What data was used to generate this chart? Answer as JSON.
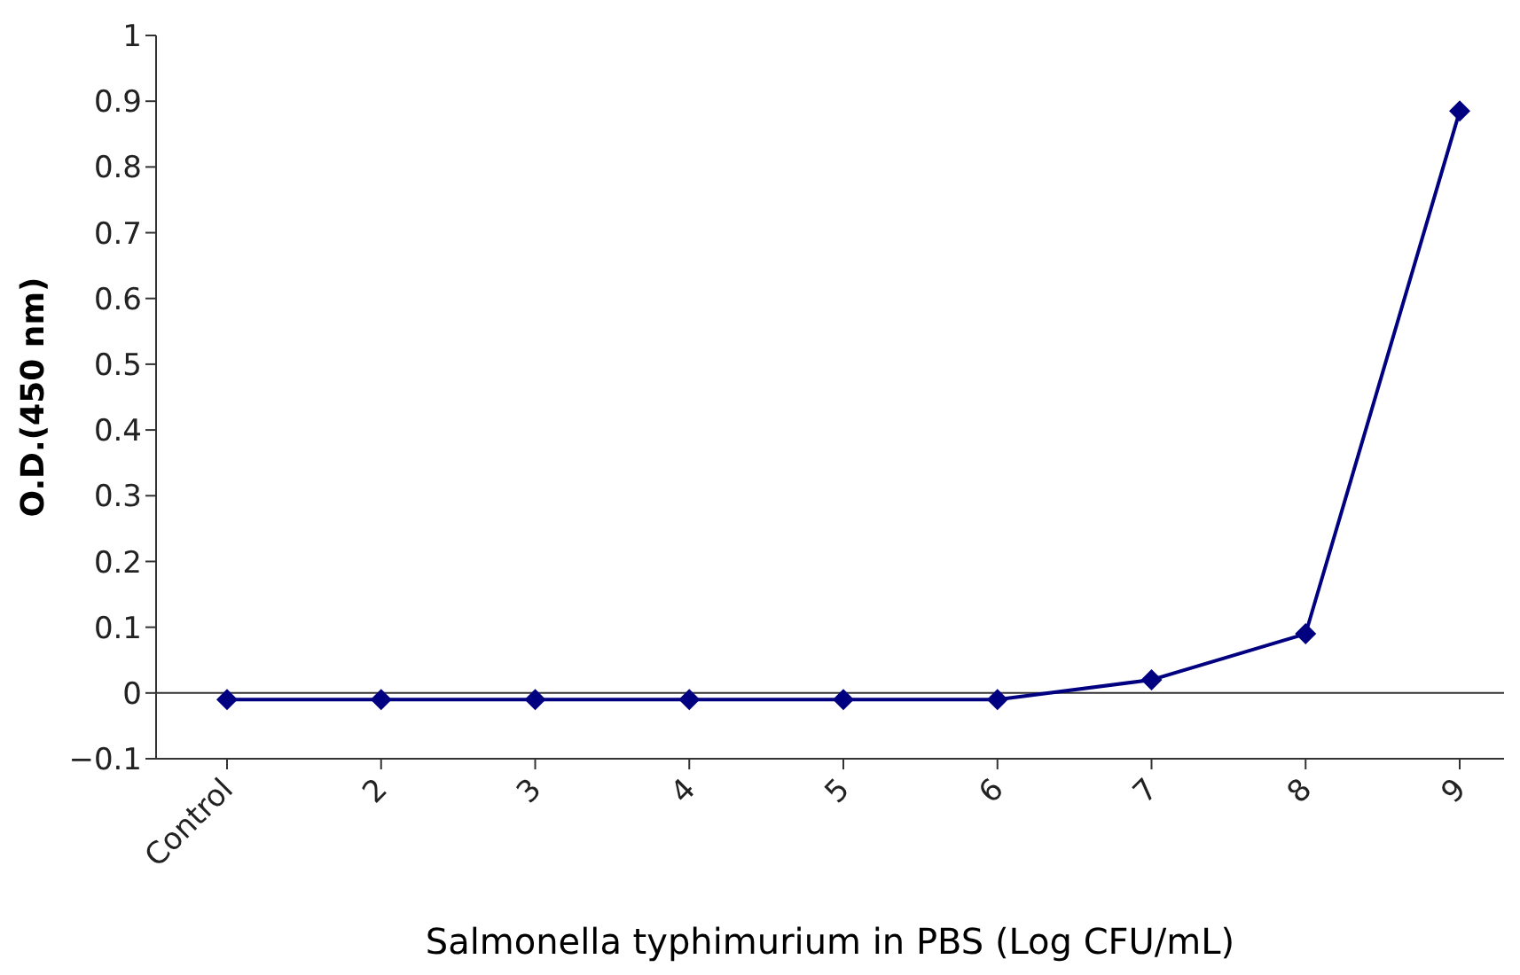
{
  "chart_data": {
    "type": "line",
    "xlabel": "Salmonella typhimurium in PBS (Log CFU/mL)",
    "ylabel": "O.D.(450 nm)",
    "categories": [
      "Control",
      "2",
      "3",
      "4",
      "5",
      "6",
      "7",
      "8",
      "9"
    ],
    "series": [
      {
        "color": "#000080",
        "values": [
          -0.01,
          -0.01,
          -0.01,
          -0.01,
          -0.01,
          -0.01,
          0.02,
          0.09,
          0.885
        ]
      }
    ],
    "ylim": [
      -0.1,
      1
    ],
    "yticks": [
      -0.1,
      0,
      0.1,
      0.2,
      0.3,
      0.4,
      0.5,
      0.6,
      0.7,
      0.8,
      0.9,
      1
    ],
    "ref_lines": [
      {
        "axis": "y",
        "value": 0
      }
    ],
    "marker": "diamond",
    "grid": false,
    "legend": false
  }
}
